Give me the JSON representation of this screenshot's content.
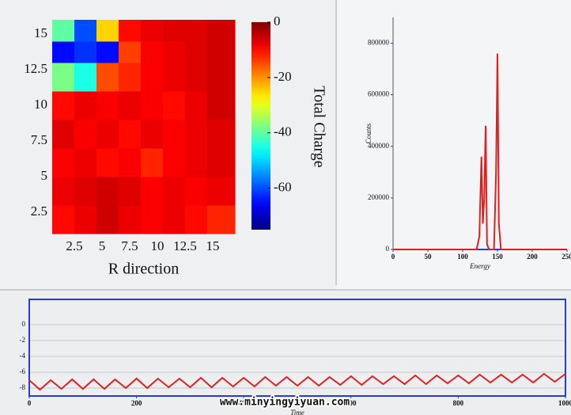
{
  "chart_data": [
    {
      "type": "heatmap",
      "xlabel": "R direction",
      "colorbar_label": "Total Charge",
      "colormap": "jet",
      "xlim": [
        0.5,
        17
      ],
      "ylim": [
        1,
        16
      ],
      "xticks": [
        2.5,
        5,
        7.5,
        10,
        12.5,
        15
      ],
      "yticks": [
        2.5,
        5,
        7.5,
        10,
        12.5,
        15
      ],
      "xbins": [
        0.5,
        2.5,
        4.5,
        6.5,
        8.5,
        10.5,
        12.5,
        14.5,
        17
      ],
      "ybins": [
        1,
        3,
        5,
        7,
        9,
        11,
        13,
        14.5,
        16
      ],
      "z": [
        [
          -10,
          -8,
          -6,
          -8,
          -9,
          -8,
          -10,
          -12
        ],
        [
          -8,
          -7,
          -6,
          -7,
          -9,
          -8,
          -9,
          -8
        ],
        [
          -9,
          -8,
          -10,
          -9,
          -12,
          -9,
          -8,
          -7
        ],
        [
          -7,
          -9,
          -8,
          -10,
          -8,
          -9,
          -8,
          -7
        ],
        [
          -10,
          -8,
          -9,
          -8,
          -9,
          -10,
          -8,
          -6
        ],
        [
          -38,
          -45,
          -15,
          -12,
          -9,
          -8,
          -7,
          -6
        ],
        [
          -65,
          -62,
          -65,
          -14,
          -9,
          -8,
          -7,
          -6
        ],
        [
          -40,
          -60,
          -25,
          -10,
          -8,
          -7,
          -7,
          -6
        ]
      ],
      "zlim": [
        -75,
        0
      ],
      "zticks": [
        0,
        -20,
        -40,
        -60
      ]
    },
    {
      "type": "line",
      "xlabel": "Energy",
      "ylabel": "Counts",
      "xlim": [
        0,
        250
      ],
      "ylim": [
        0,
        900000
      ],
      "xticks": [
        0,
        50,
        100,
        150,
        200,
        250
      ],
      "yticks": [
        0,
        200000,
        400000,
        600000,
        800000
      ],
      "x": [
        0,
        120,
        124,
        127,
        129,
        131,
        133,
        135,
        138,
        145,
        148,
        150,
        152,
        155,
        250
      ],
      "series": [
        {
          "color": "#e02020",
          "values": [
            0,
            0,
            50000,
            360000,
            100000,
            200000,
            480000,
            20000,
            0,
            0,
            300000,
            760000,
            100000,
            0,
            0
          ]
        }
      ],
      "axis_color": "#2a3bd0"
    },
    {
      "type": "line",
      "xlabel": "Time",
      "xlim": [
        0,
        1000
      ],
      "ylim": [
        -9,
        3.2
      ],
      "xticks": [
        0,
        200,
        400,
        600,
        800,
        1000
      ],
      "yticks": [
        0,
        -2,
        -4,
        -6,
        -8
      ],
      "grid": true,
      "x": [
        0,
        20,
        40,
        60,
        80,
        100,
        120,
        140,
        160,
        180,
        200,
        220,
        240,
        260,
        280,
        300,
        320,
        340,
        360,
        380,
        400,
        420,
        440,
        460,
        480,
        500,
        520,
        540,
        560,
        580,
        600,
        620,
        640,
        660,
        680,
        700,
        720,
        740,
        760,
        780,
        800,
        820,
        840,
        860,
        880,
        900,
        920,
        940,
        960,
        980,
        1000
      ],
      "series": [
        {
          "color": "#e02020",
          "values": [
            -7.0,
            -8.2,
            -7.0,
            -8.1,
            -6.9,
            -8.1,
            -6.9,
            -8.1,
            -6.9,
            -8.0,
            -6.8,
            -8.0,
            -6.8,
            -7.9,
            -6.8,
            -7.9,
            -6.7,
            -7.9,
            -6.7,
            -7.8,
            -6.7,
            -7.8,
            -6.6,
            -7.7,
            -6.6,
            -7.7,
            -6.6,
            -7.7,
            -6.6,
            -7.6,
            -6.5,
            -7.6,
            -6.5,
            -7.5,
            -6.5,
            -7.5,
            -6.4,
            -7.5,
            -6.4,
            -7.4,
            -6.4,
            -7.4,
            -6.3,
            -7.3,
            -6.3,
            -7.3,
            -6.3,
            -7.3,
            -6.2,
            -7.2,
            -6.2
          ]
        }
      ],
      "axis_color": "#2a3bd0"
    }
  ],
  "watermark": "www.minyingyiyuan.com"
}
